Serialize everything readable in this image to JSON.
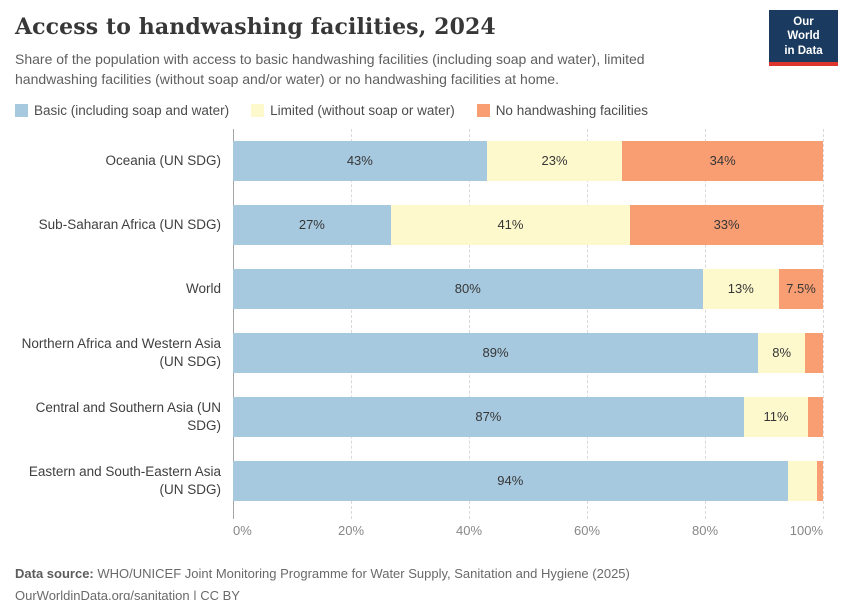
{
  "header": {
    "title": "Access to handwashing facilities, 2024",
    "subtitle": "Share of the population with access to basic handwashing facilities (including soap and water), limited handwashing facilities (without soap and/or water) or no handwashing facilities at home.",
    "logo": {
      "line1": "Our World",
      "line2": "in Data"
    }
  },
  "legend": {
    "items": [
      {
        "label": "Basic (including soap and water)",
        "color": "#a7c9e0"
      },
      {
        "label": "Limited (without soap or water)",
        "color": "#fdf9cd"
      },
      {
        "label": "No handwashing facilities",
        "color": "#f89e72"
      }
    ]
  },
  "chart_data": {
    "type": "bar",
    "orientation": "horizontal",
    "stacked": true,
    "unit": "%",
    "xlim": [
      0,
      100
    ],
    "grid": "dashed-vertical",
    "legend_position": "top",
    "series_names": [
      "Basic (including soap and water)",
      "Limited (without soap or water)",
      "No handwashing facilities"
    ],
    "x_ticks": [
      "0%",
      "20%",
      "40%",
      "60%",
      "80%",
      "100%"
    ],
    "rows": [
      {
        "label": "Oceania (UN SDG)",
        "values": [
          43,
          23,
          34
        ],
        "labels": [
          "43%",
          "23%",
          "34%"
        ]
      },
      {
        "label": "Sub-Saharan Africa (UN SDG)",
        "values": [
          27,
          41,
          33
        ],
        "labels": [
          "27%",
          "41%",
          "33%"
        ]
      },
      {
        "label": "World",
        "values": [
          80,
          13,
          7.5
        ],
        "labels": [
          "80%",
          "13%",
          "7.5%"
        ]
      },
      {
        "label": "Northern Africa and Western Asia (UN SDG)",
        "values": [
          89,
          8,
          3
        ],
        "labels": [
          "89%",
          "8%",
          ""
        ]
      },
      {
        "label": "Central and Southern Asia (UN SDG)",
        "values": [
          87,
          11,
          2.5
        ],
        "labels": [
          "87%",
          "11%",
          ""
        ]
      },
      {
        "label": "Eastern and South-Eastern Asia (UN SDG)",
        "values": [
          94,
          5,
          1
        ],
        "labels": [
          "94%",
          "",
          ""
        ]
      }
    ]
  },
  "footer": {
    "source_label": "Data source:",
    "source_text": " WHO/UNICEF Joint Monitoring Programme for Water Supply, Sanitation and Hygiene (2025)",
    "citation": "OurWorldinData.org/sanitation | CC BY"
  }
}
